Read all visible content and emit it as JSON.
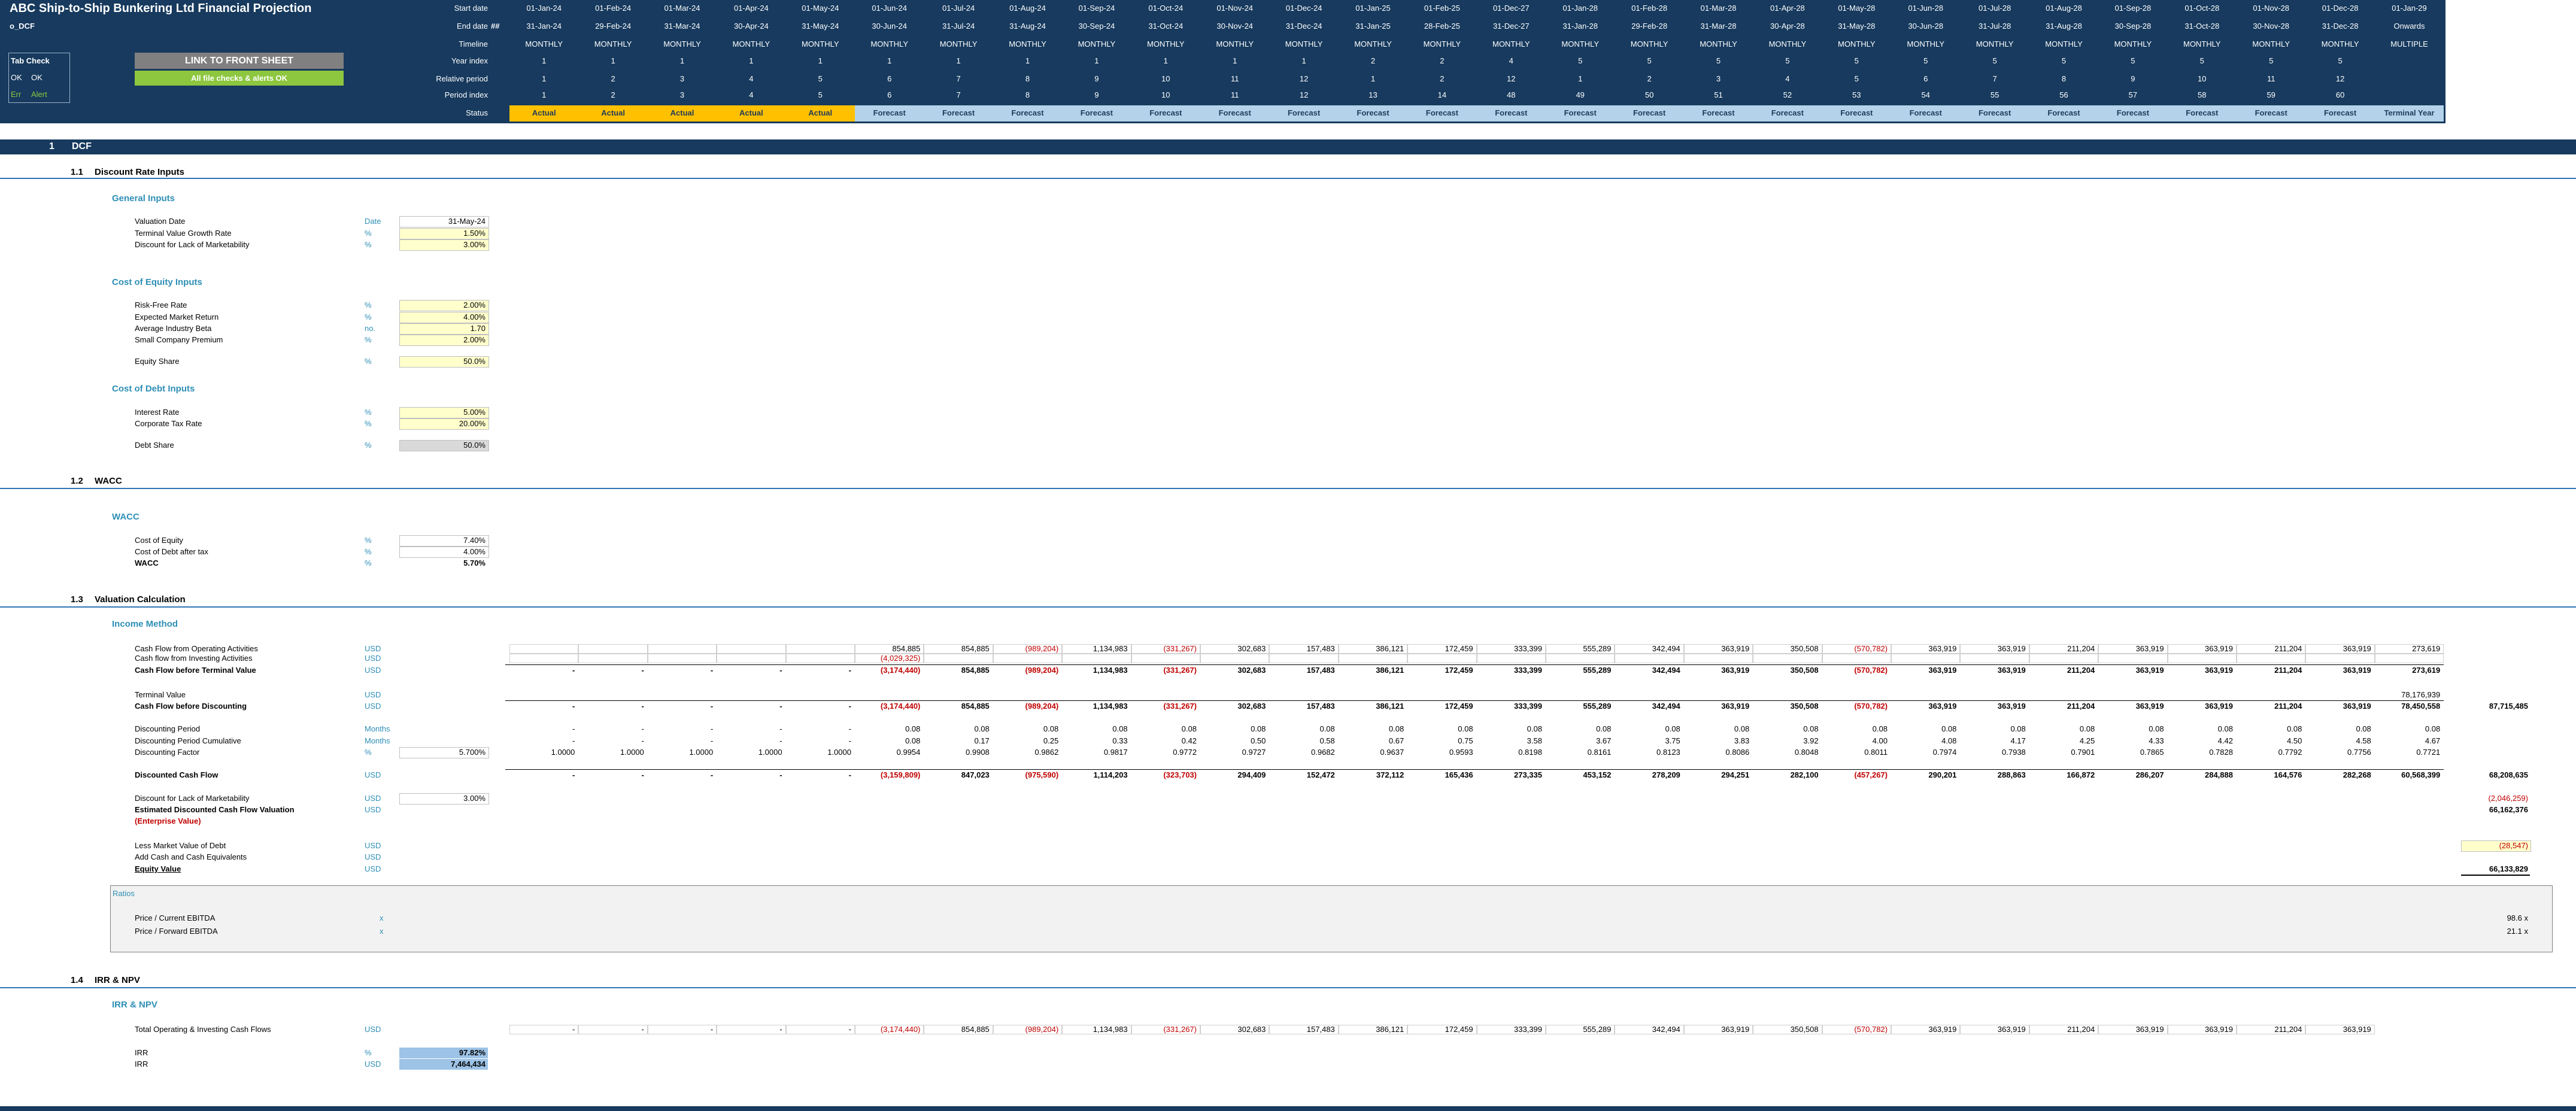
{
  "header": {
    "title": "ABC Ship-to-Ship Bunkering Ltd Financial Projection",
    "sheet": "o_DCF",
    "tab_check": {
      "title": "Tab Check",
      "ok_code": "OK",
      "ok_label": "OK",
      "err_code": "Err",
      "err_label": "Alert"
    },
    "link_button": "LINK TO FRONT SHEET",
    "status_button": "All file checks & alerts OK"
  },
  "timeline": {
    "end_date_flag": "##",
    "rows": [
      {
        "label": "Start date",
        "values": [
          "01-Jan-24",
          "01-Feb-24",
          "01-Mar-24",
          "01-Apr-24",
          "01-May-24",
          "01-Jun-24",
          "01-Jul-24",
          "01-Aug-24",
          "01-Sep-24",
          "01-Oct-24",
          "01-Nov-24",
          "01-Dec-24",
          "01-Jan-25",
          "01-Feb-25",
          "01-Dec-27",
          "01-Jan-28",
          "01-Feb-28",
          "01-Mar-28",
          "01-Apr-28",
          "01-May-28",
          "01-Jun-28",
          "01-Jul-28",
          "01-Aug-28",
          "01-Sep-28",
          "01-Oct-28",
          "01-Nov-28",
          "01-Dec-28",
          "01-Jan-29"
        ]
      },
      {
        "label": "End date",
        "values": [
          "31-Jan-24",
          "29-Feb-24",
          "31-Mar-24",
          "30-Apr-24",
          "31-May-24",
          "30-Jun-24",
          "31-Jul-24",
          "31-Aug-24",
          "30-Sep-24",
          "31-Oct-24",
          "30-Nov-24",
          "31-Dec-24",
          "31-Jan-25",
          "28-Feb-25",
          "31-Dec-27",
          "31-Jan-28",
          "29-Feb-28",
          "31-Mar-28",
          "30-Apr-28",
          "31-May-28",
          "30-Jun-28",
          "31-Jul-28",
          "31-Aug-28",
          "30-Sep-28",
          "31-Oct-28",
          "30-Nov-28",
          "31-Dec-28",
          "Onwards"
        ]
      },
      {
        "label": "Timeline",
        "values": [
          "MONTHLY",
          "MONTHLY",
          "MONTHLY",
          "MONTHLY",
          "MONTHLY",
          "MONTHLY",
          "MONTHLY",
          "MONTHLY",
          "MONTHLY",
          "MONTHLY",
          "MONTHLY",
          "MONTHLY",
          "MONTHLY",
          "MONTHLY",
          "MONTHLY",
          "MONTHLY",
          "MONTHLY",
          "MONTHLY",
          "MONTHLY",
          "MONTHLY",
          "MONTHLY",
          "MONTHLY",
          "MONTHLY",
          "MONTHLY",
          "MONTHLY",
          "MONTHLY",
          "MONTHLY",
          "MULTIPLE"
        ]
      },
      {
        "label": "Year index",
        "values": [
          1,
          1,
          1,
          1,
          1,
          1,
          1,
          1,
          1,
          1,
          1,
          1,
          2,
          2,
          4,
          5,
          5,
          5,
          5,
          5,
          5,
          5,
          5,
          5,
          5,
          5,
          5,
          null
        ]
      },
      {
        "label": "Relative period",
        "values": [
          1,
          2,
          3,
          4,
          5,
          6,
          7,
          8,
          9,
          10,
          11,
          12,
          1,
          2,
          12,
          1,
          2,
          3,
          4,
          5,
          6,
          7,
          8,
          9,
          10,
          11,
          12,
          null
        ]
      },
      {
        "label": "Period index",
        "values": [
          1,
          2,
          3,
          4,
          5,
          6,
          7,
          8,
          9,
          10,
          11,
          12,
          13,
          14,
          48,
          49,
          50,
          51,
          52,
          53,
          54,
          55,
          56,
          57,
          58,
          59,
          60,
          null
        ]
      },
      {
        "label": "Status",
        "values": [
          "Actual",
          "Actual",
          "Actual",
          "Actual",
          "Actual",
          "Forecast",
          "Forecast",
          "Forecast",
          "Forecast",
          "Forecast",
          "Forecast",
          "Forecast",
          "Forecast",
          "Forecast",
          "Forecast",
          "Forecast",
          "Forecast",
          "Forecast",
          "Forecast",
          "Forecast",
          "Forecast",
          "Forecast",
          "Forecast",
          "Forecast",
          "Forecast",
          "Forecast",
          "Forecast",
          "Terminal Year"
        ]
      }
    ]
  },
  "dcf": {
    "number": "1",
    "title": "DCF"
  },
  "inputs": [
    {
      "number": "1.1",
      "title": "Discount Rate Inputs",
      "groups": [
        {
          "title": "General Inputs",
          "rows": [
            {
              "label": "Valuation Date",
              "unit": "Date",
              "value": "31-May-24"
            },
            {
              "label": "Terminal Value Growth Rate",
              "unit": "%",
              "value": "1.50%"
            },
            {
              "label": "Discount for Lack of Marketability",
              "unit": "%",
              "value": "3.00%"
            }
          ]
        },
        {
          "title": "Cost of Equity Inputs",
          "rows": [
            {
              "label": "Risk-Free Rate",
              "unit": "%",
              "value": "2.00%"
            },
            {
              "label": "Expected Market Return",
              "unit": "%",
              "value": "4.00%"
            },
            {
              "label": "Average Industry Beta",
              "unit": "no.",
              "value": "1.70"
            },
            {
              "label": "Small Company Premium",
              "unit": "%",
              "value": "2.00%"
            },
            {
              "label": "Equity Share",
              "unit": "%",
              "value": "50.0%"
            }
          ]
        },
        {
          "title": "Cost of Debt Inputs",
          "rows": [
            {
              "label": "Interest Rate",
              "unit": "%",
              "value": "5.00%"
            },
            {
              "label": "Corporate Tax Rate",
              "unit": "%",
              "value": "20.00%"
            },
            {
              "label": "Debt Share",
              "unit": "%",
              "value": "50.0%"
            }
          ]
        }
      ]
    },
    {
      "number": "1.2",
      "title": "WACC",
      "groups": [
        {
          "title": "WACC",
          "rows": [
            {
              "label": "Cost of Equity",
              "unit": "%",
              "value": "7.40%"
            },
            {
              "label": "Cost of Debt after tax",
              "unit": "%",
              "value": "4.00%"
            },
            {
              "label": "WACC",
              "unit": "%",
              "value": "5.70%"
            }
          ]
        }
      ]
    }
  ],
  "valuation": {
    "number": "1.3",
    "title": "Valuation Calculation",
    "group": "Income Method",
    "rows": [
      {
        "label": "Cash Flow from Operating Activities",
        "unit": "USD",
        "values": [
          null,
          null,
          null,
          null,
          null,
          "854,885",
          "854,885",
          "(989,204)",
          "1,134,983",
          "(331,267)",
          "302,683",
          "157,483",
          "386,121",
          "172,459",
          "333,399",
          "555,289",
          "342,494",
          "363,919",
          "350,508",
          "(570,782)",
          "363,919",
          "363,919",
          "211,204",
          "363,919",
          "363,919",
          "211,204",
          "363,919",
          "273,619"
        ]
      },
      {
        "label": "Cash flow from Investing Activities",
        "unit": "USD",
        "values": [
          null,
          null,
          null,
          null,
          null,
          "(4,029,325)",
          null,
          null,
          null,
          null,
          null,
          null,
          null,
          null,
          null,
          null,
          null,
          null,
          null,
          null,
          null,
          null,
          null,
          null,
          null,
          null,
          null,
          null
        ]
      },
      {
        "label": "Cash Flow before Terminal Value",
        "unit": "USD",
        "values": [
          "-",
          "-",
          "-",
          "-",
          "-",
          "(3,174,440)",
          "854,885",
          "(989,204)",
          "1,134,983",
          "(331,267)",
          "302,683",
          "157,483",
          "386,121",
          "172,459",
          "333,399",
          "555,289",
          "342,494",
          "363,919",
          "350,508",
          "(570,782)",
          "363,919",
          "363,919",
          "211,204",
          "363,919",
          "363,919",
          "211,204",
          "363,919",
          "273,619"
        ]
      },
      {
        "label": "Terminal Value",
        "unit": "USD",
        "values": [
          null,
          null,
          null,
          null,
          null,
          null,
          null,
          null,
          null,
          null,
          null,
          null,
          null,
          null,
          null,
          null,
          null,
          null,
          null,
          null,
          null,
          null,
          null,
          null,
          null,
          null,
          null,
          "78,176,939"
        ]
      },
      {
        "label": "Cash Flow before Discounting",
        "unit": "USD",
        "values": [
          "-",
          "-",
          "-",
          "-",
          "-",
          "(3,174,440)",
          "854,885",
          "(989,204)",
          "1,134,983",
          "(331,267)",
          "302,683",
          "157,483",
          "386,121",
          "172,459",
          "333,399",
          "555,289",
          "342,494",
          "363,919",
          "350,508",
          "(570,782)",
          "363,919",
          "363,919",
          "211,204",
          "363,919",
          "363,919",
          "211,204",
          "363,919",
          "78,450,558"
        ],
        "total": "87,715,485"
      },
      {
        "label": "Discounting Period",
        "unit": "Months",
        "values": [
          "-",
          "-",
          "-",
          "-",
          "-",
          "0.08",
          "0.08",
          "0.08",
          "0.08",
          "0.08",
          "0.08",
          "0.08",
          "0.08",
          "0.08",
          "0.08",
          "0.08",
          "0.08",
          "0.08",
          "0.08",
          "0.08",
          "0.08",
          "0.08",
          "0.08",
          "0.08",
          "0.08",
          "0.08",
          "0.08",
          "0.08"
        ]
      },
      {
        "label": "Discounting Period Cumulative",
        "unit": "Months",
        "values": [
          "-",
          "-",
          "-",
          "-",
          "-",
          "0.08",
          "0.17",
          "0.25",
          "0.33",
          "0.42",
          "0.50",
          "0.58",
          "0.67",
          "0.75",
          "3.58",
          "3.67",
          "3.75",
          "3.83",
          "3.92",
          "4.00",
          "4.08",
          "4.17",
          "4.25",
          "4.33",
          "4.42",
          "4.50",
          "4.58",
          "4.67"
        ]
      },
      {
        "label": "Discounting Factor",
        "unit": "%",
        "input": "5.700%",
        "values": [
          "1.0000",
          "1.0000",
          "1.0000",
          "1.0000",
          "1.0000",
          "0.9954",
          "0.9908",
          "0.9862",
          "0.9817",
          "0.9772",
          "0.9727",
          "0.9682",
          "0.9637",
          "0.9593",
          "0.8198",
          "0.8161",
          "0.8123",
          "0.8086",
          "0.8048",
          "0.8011",
          "0.7974",
          "0.7938",
          "0.7901",
          "0.7865",
          "0.7828",
          "0.7792",
          "0.7756",
          "0.7721"
        ]
      },
      {
        "label": "Discounted Cash Flow",
        "unit": "USD",
        "values": [
          "-",
          "-",
          "-",
          "-",
          "-",
          "(3,159,809)",
          "847,023",
          "(975,590)",
          "1,114,203",
          "(323,703)",
          "294,409",
          "152,472",
          "372,112",
          "165,436",
          "273,335",
          "453,152",
          "278,209",
          "294,251",
          "282,100",
          "(457,267)",
          "290,201",
          "288,863",
          "166,872",
          "286,207",
          "284,888",
          "164,576",
          "282,268",
          "60,568,399"
        ],
        "total": "68,208,635"
      },
      {
        "label": "Discount for Lack of Marketability",
        "unit": "USD",
        "input": "3.00%",
        "total": "(2,046,259)"
      },
      {
        "label": "Estimated Discounted Cash Flow Valuation",
        "note": "(Enterprise Value)",
        "unit": "USD",
        "total": "66,162,376"
      },
      {
        "label": "Less Market Value of Debt",
        "unit": "USD",
        "total": "(28,547)"
      },
      {
        "label": "Add Cash and Cash Equivalents",
        "unit": "USD"
      },
      {
        "label": "Equity Value",
        "unit": "USD",
        "total": "66,133,829"
      }
    ]
  },
  "ratios": {
    "title": "Ratios",
    "rows": [
      {
        "label": "Price / Current EBITDA",
        "unit": "x",
        "value": "98.6 x"
      },
      {
        "label": "Price / Forward EBITDA",
        "unit": "x",
        "value": "21.1 x"
      }
    ]
  },
  "irr": {
    "number": "1.4",
    "title": "IRR & NPV",
    "group": "IRR & NPV",
    "cash_flow": {
      "label": "Total Operating & Investing Cash Flows",
      "unit": "USD",
      "values": [
        "-",
        "-",
        "-",
        "-",
        "-",
        "(3,174,440)",
        "854,885",
        "(989,204)",
        "1,134,983",
        "(331,267)",
        "302,683",
        "157,483",
        "386,121",
        "172,459",
        "333,399",
        "555,289",
        "342,494",
        "363,919",
        "350,508",
        "(570,782)",
        "363,919",
        "363,919",
        "211,204",
        "363,919",
        "363,919",
        "211,204",
        "363,919"
      ]
    },
    "results": [
      {
        "label": "IRR",
        "unit": "%",
        "value": "97.82%"
      },
      {
        "label": "IRR",
        "unit": "USD",
        "value": "7,464,434"
      }
    ]
  }
}
